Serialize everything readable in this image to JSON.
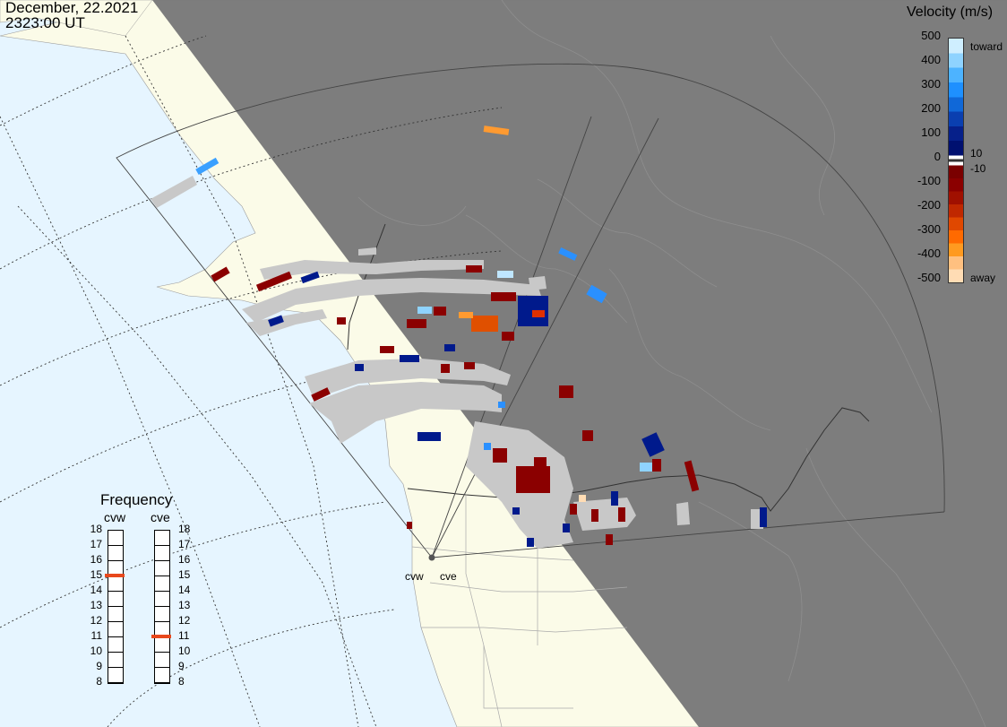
{
  "header": {
    "date": "December, 22.2021",
    "time": "2323:00 UT"
  },
  "colorbar": {
    "title": "Velocity (m/s)",
    "ticks": [
      "500",
      "400",
      "300",
      "200",
      "100",
      "0",
      "-100",
      "-200",
      "-300",
      "-400",
      "-500"
    ],
    "label_toward": "toward",
    "label_away": "away",
    "label_pos": "10",
    "label_neg": "-10",
    "colors_toward": [
      "#cfeeff",
      "#8fd3ff",
      "#4db3ff",
      "#1e90ff",
      "#1068d8",
      "#0a3fb0",
      "#06208a",
      "#001070"
    ],
    "colors_away": [
      "#7a0000",
      "#8b0000",
      "#a01000",
      "#c02800",
      "#e04800",
      "#ff6a00",
      "#ff9a20",
      "#ffc080",
      "#ffdcb4"
    ]
  },
  "frequency": {
    "title": "Frequency",
    "radars": [
      "cvw",
      "cve"
    ],
    "scale": [
      "18",
      "17",
      "16",
      "15",
      "14",
      "13",
      "12",
      "11",
      "10",
      "9",
      "8"
    ],
    "values_mhz": {
      "cvw": 15,
      "cve": 11
    },
    "marker_color": "#e8481c"
  },
  "radar_sites": {
    "labels": [
      "cvw",
      "cve"
    ]
  },
  "colors": {
    "ocean": "#e6f5ff",
    "land_day": "#fbfbe8",
    "night": "#7a7a7a",
    "scatter_gray": "#c8c8c8"
  }
}
